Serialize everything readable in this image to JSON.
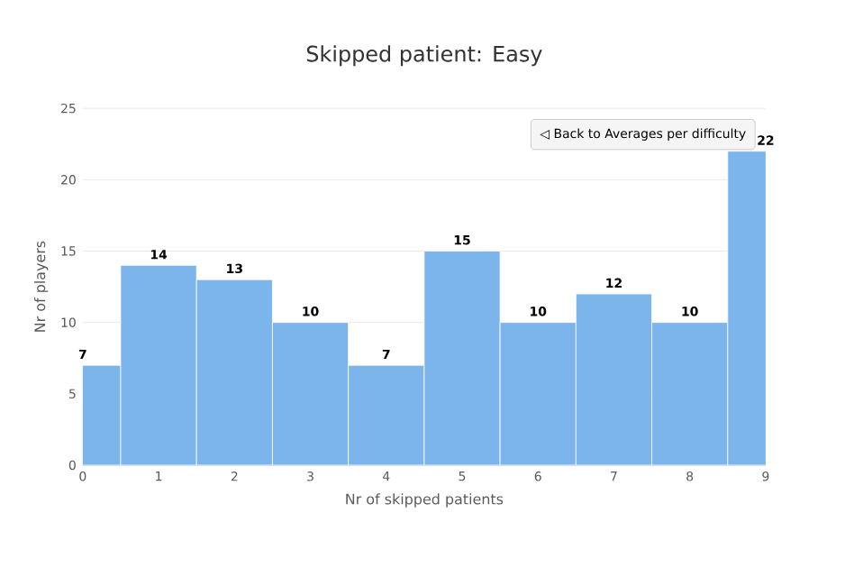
{
  "chart_data": {
    "type": "bar",
    "title": "Skipped patient: Easy",
    "xlabel": "Nr of skipped patients",
    "ylabel": "Nr of players",
    "x": [
      0,
      1,
      2,
      3,
      4,
      5,
      6,
      7,
      8,
      9
    ],
    "values": [
      7,
      14,
      13,
      10,
      7,
      15,
      10,
      12,
      10,
      22
    ],
    "color": "#7cb5ec",
    "xlim": [
      0,
      9
    ],
    "xticks": [
      0,
      1,
      2,
      3,
      4,
      5,
      6,
      7,
      8,
      9
    ],
    "ylim": [
      0,
      25
    ],
    "yticks": [
      0,
      5,
      10,
      15,
      20,
      25
    ],
    "grid": "y",
    "data_labels": true,
    "annotations": [
      "◁ Back to Averages per difficulty"
    ]
  }
}
